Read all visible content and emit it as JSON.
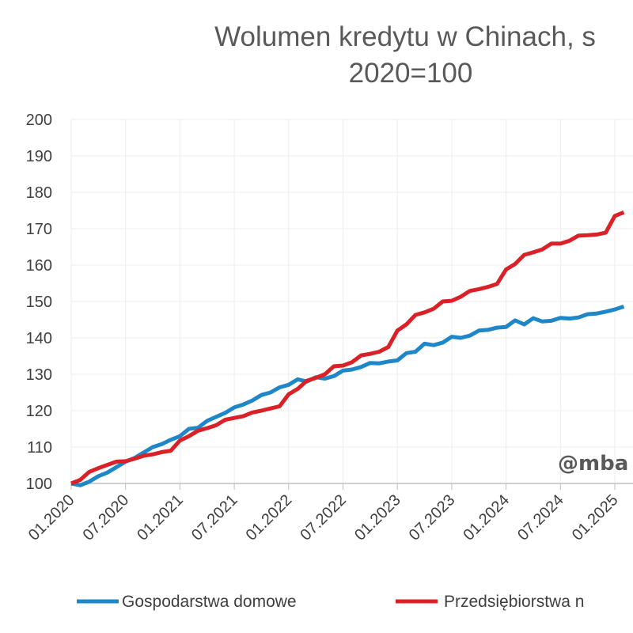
{
  "chart_data": {
    "type": "line",
    "title": "Wolumen kredytu w Chinach, s",
    "subtitle": "2020=100",
    "ylim": [
      100,
      200
    ],
    "yticks": [
      "100",
      "110",
      "120",
      "130",
      "140",
      "150",
      "160",
      "170",
      "180",
      "190",
      "200"
    ],
    "xtick_labels": [
      "01.2020",
      "07.2020",
      "01.2021",
      "07.2021",
      "01.2022",
      "07.2022",
      "01.2023",
      "07.2023",
      "01.2024",
      "07.2024",
      "01.2025"
    ],
    "x_start": "01.2020",
    "grid": true,
    "legend_position": "bottom",
    "watermark": "@mba",
    "series": [
      {
        "name": "Gospodarstwa domowe",
        "color": "#1f86c8",
        "values": [
          100,
          99.5,
          100.5,
          102,
          103,
          104.5,
          106,
          107,
          108.5,
          110,
          110.8,
          112,
          113,
          115,
          115.3,
          117.2,
          118.3,
          119.4,
          120.9,
          121.7,
          122.8,
          124.3,
          125,
          126.4,
          127.1,
          128.6,
          128,
          129.2,
          128.8,
          129.5,
          131,
          131.3,
          132,
          133.1,
          133,
          133.5,
          133.8,
          135.8,
          136.2,
          138.4,
          138,
          138.7,
          140.3,
          140,
          140.6,
          142,
          142.2,
          142.8,
          143,
          144.8,
          143.7,
          145.4,
          144.5,
          144.7,
          145.5,
          145.3,
          145.6,
          146.5,
          146.7,
          147.2,
          147.8,
          148.6
        ]
      },
      {
        "name": "Przedsiębiorstwa n",
        "color": "#d92127",
        "values": [
          100,
          101,
          103.2,
          104.2,
          105.1,
          106,
          106.1,
          106.8,
          107.6,
          108,
          108.6,
          109,
          111.8,
          113,
          114.5,
          115.2,
          116,
          117.5,
          118,
          118.5,
          119.5,
          120,
          120.6,
          121.2,
          124.5,
          126,
          128.2,
          129,
          130,
          132.2,
          132.4,
          133.3,
          135.2,
          135.6,
          136.2,
          137.5,
          142,
          143.7,
          146.3,
          147,
          148,
          150,
          150.2,
          151.3,
          152.9,
          153.4,
          154,
          154.8,
          158.8,
          160.3,
          162.8,
          163.5,
          164.3,
          165.9,
          165.9,
          166.7,
          168.1,
          168.2,
          168.4,
          168.9,
          173.5,
          174.5
        ]
      }
    ]
  }
}
